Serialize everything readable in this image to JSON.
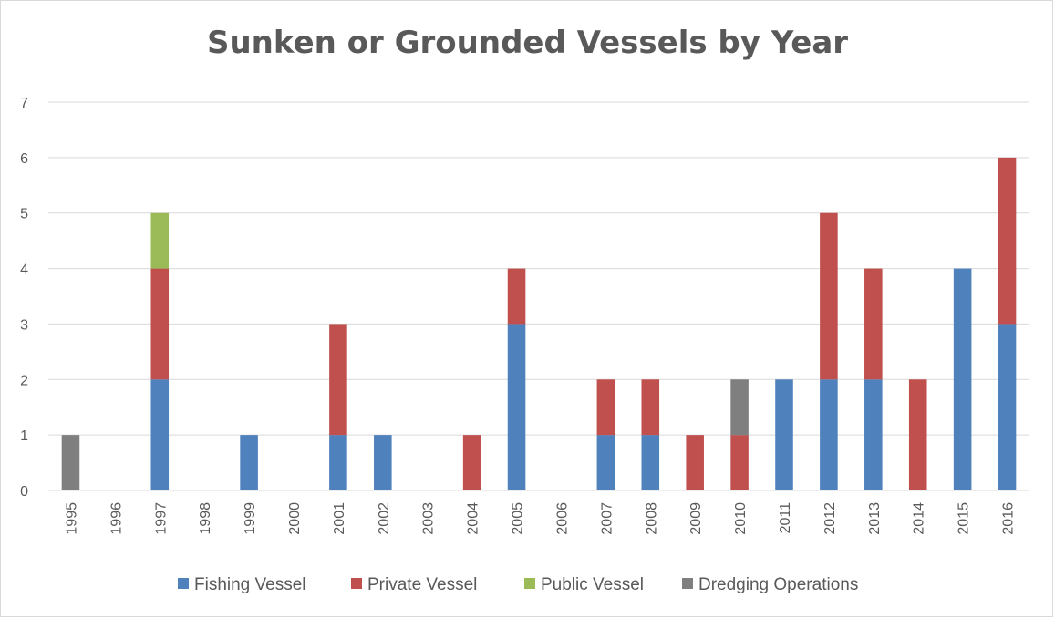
{
  "chart_data": {
    "type": "bar",
    "stacked": true,
    "title": "Sunken or Grounded Vessels by Year",
    "xlabel": "",
    "ylabel": "",
    "ylim": [
      0,
      7
    ],
    "yticks": [
      0,
      1,
      2,
      3,
      4,
      5,
      6,
      7
    ],
    "grid": true,
    "legend_position": "bottom",
    "categories": [
      "1995",
      "1996",
      "1997",
      "1998",
      "1999",
      "2000",
      "2001",
      "2002",
      "2003",
      "2004",
      "2005",
      "2006",
      "2007",
      "2008",
      "2009",
      "2010",
      "2011",
      "2012",
      "2013",
      "2014",
      "2015",
      "2016"
    ],
    "series": [
      {
        "name": "Fishing Vessel",
        "color": "#4f81bd",
        "values": [
          0,
          0,
          2,
          0,
          1,
          0,
          1,
          1,
          0,
          0,
          3,
          0,
          1,
          1,
          0,
          0,
          2,
          2,
          2,
          0,
          4,
          3
        ]
      },
      {
        "name": "Private Vessel",
        "color": "#c0504d",
        "values": [
          0,
          0,
          2,
          0,
          0,
          0,
          2,
          0,
          0,
          1,
          1,
          0,
          1,
          1,
          1,
          1,
          0,
          3,
          2,
          2,
          0,
          3
        ]
      },
      {
        "name": "Public Vessel",
        "color": "#9bbb59",
        "values": [
          0,
          0,
          1,
          0,
          0,
          0,
          0,
          0,
          0,
          0,
          0,
          0,
          0,
          0,
          0,
          0,
          0,
          0,
          0,
          0,
          0,
          0
        ]
      },
      {
        "name": "Dredging Operations",
        "color": "#7f7f7f",
        "values": [
          1,
          0,
          0,
          0,
          0,
          0,
          0,
          0,
          0,
          0,
          0,
          0,
          0,
          0,
          0,
          1,
          0,
          0,
          0,
          0,
          0,
          0
        ]
      }
    ]
  }
}
